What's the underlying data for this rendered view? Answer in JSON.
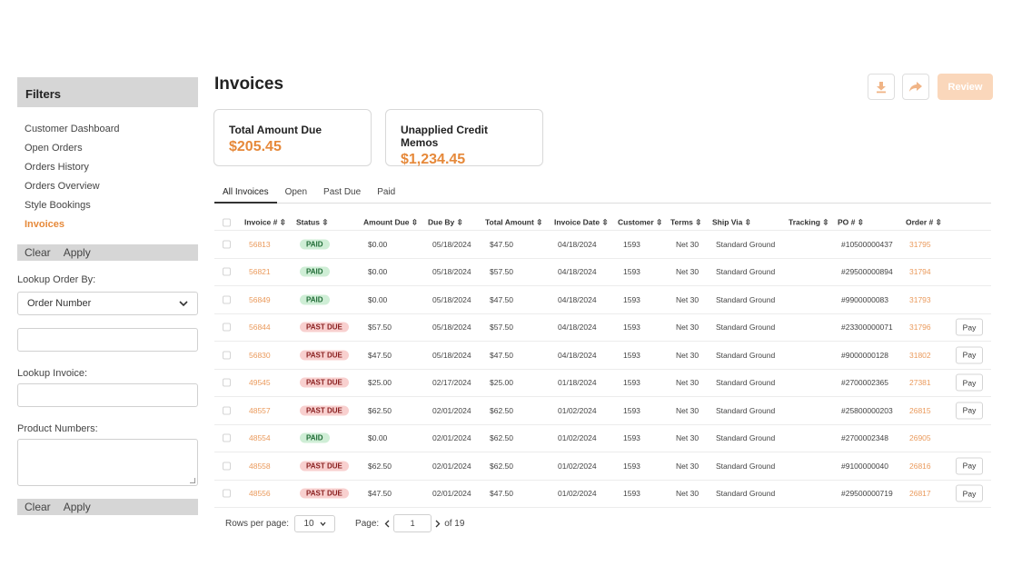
{
  "sidebar": {
    "title": "Filters",
    "nav": [
      "Customer Dashboard",
      "Open Orders",
      "Orders History",
      "Orders Overview",
      "Style Bookings",
      "Invoices"
    ],
    "clear": "Clear",
    "apply": "Apply",
    "lookup_order_label": "Lookup Order By:",
    "lookup_order_value": "Order Number",
    "lookup_invoice_label": "Lookup Invoice:",
    "product_numbers_label": "Product Numbers:"
  },
  "main": {
    "title": "Invoices",
    "review": "Review",
    "cards": [
      {
        "label": "Total Amount Due",
        "value": "$205.45"
      },
      {
        "label": "Unapplied Credit Memos",
        "value": "$1,234.45"
      }
    ],
    "tabs": [
      "All Invoices",
      "Open",
      "Past Due",
      "Paid"
    ],
    "columns": [
      "Invoice #",
      "Status",
      "Amount Due",
      "Due By",
      "Total Amount",
      "Invoice Date",
      "Customer",
      "Terms",
      "Ship Via",
      "Tracking",
      "PO #",
      "Order #"
    ],
    "sort_glyph": "⇳",
    "pay_label": "Pay",
    "rows": [
      {
        "invoice": "56813",
        "status": "PAID",
        "amount_due": "$0.00",
        "due_by": "05/18/2024",
        "total": "$47.50",
        "invoice_date": "04/18/2024",
        "customer": "1593",
        "terms": "Net 30",
        "ship_via": "Standard Ground",
        "po": "#10500000437",
        "order": "31795",
        "pay": false
      },
      {
        "invoice": "56821",
        "status": "PAID",
        "amount_due": "$0.00",
        "due_by": "05/18/2024",
        "total": "$57.50",
        "invoice_date": "04/18/2024",
        "customer": "1593",
        "terms": "Net 30",
        "ship_via": "Standard Ground",
        "po": "#29500000894",
        "order": "31794",
        "pay": false
      },
      {
        "invoice": "56849",
        "status": "PAID",
        "amount_due": "$0.00",
        "due_by": "05/18/2024",
        "total": "$47.50",
        "invoice_date": "04/18/2024",
        "customer": "1593",
        "terms": "Net 30",
        "ship_via": "Standard Ground",
        "po": "#9900000083",
        "order": "31793",
        "pay": false
      },
      {
        "invoice": "56844",
        "status": "PAST DUE",
        "amount_due": "$57.50",
        "due_by": "05/18/2024",
        "total": "$57.50",
        "invoice_date": "04/18/2024",
        "customer": "1593",
        "terms": "Net 30",
        "ship_via": "Standard Ground",
        "po": "#23300000071",
        "order": "31796",
        "pay": true
      },
      {
        "invoice": "56830",
        "status": "PAST DUE",
        "amount_due": "$47.50",
        "due_by": "05/18/2024",
        "total": "$47.50",
        "invoice_date": "04/18/2024",
        "customer": "1593",
        "terms": "Net 30",
        "ship_via": "Standard Ground",
        "po": "#9000000128",
        "order": "31802",
        "pay": true
      },
      {
        "invoice": "49545",
        "status": "PAST DUE",
        "amount_due": "$25.00",
        "due_by": "02/17/2024",
        "total": "$25.00",
        "invoice_date": "01/18/2024",
        "customer": "1593",
        "terms": "Net 30",
        "ship_via": "Standard Ground",
        "po": "#2700002365",
        "order": "27381",
        "pay": true
      },
      {
        "invoice": "48557",
        "status": "PAST DUE",
        "amount_due": "$62.50",
        "due_by": "02/01/2024",
        "total": "$62.50",
        "invoice_date": "01/02/2024",
        "customer": "1593",
        "terms": "Net 30",
        "ship_via": "Standard Ground",
        "po": "#25800000203",
        "order": "26815",
        "pay": true
      },
      {
        "invoice": "48554",
        "status": "PAID",
        "amount_due": "$0.00",
        "due_by": "02/01/2024",
        "total": "$62.50",
        "invoice_date": "01/02/2024",
        "customer": "1593",
        "terms": "Net 30",
        "ship_via": "Standard Ground",
        "po": "#2700002348",
        "order": "26905",
        "pay": false
      },
      {
        "invoice": "48558",
        "status": "PAST DUE",
        "amount_due": "$62.50",
        "due_by": "02/01/2024",
        "total": "$62.50",
        "invoice_date": "01/02/2024",
        "customer": "1593",
        "terms": "Net 30",
        "ship_via": "Standard Ground",
        "po": "#9100000040",
        "order": "26816",
        "pay": true
      },
      {
        "invoice": "48556",
        "status": "PAST DUE",
        "amount_due": "$47.50",
        "due_by": "02/01/2024",
        "total": "$47.50",
        "invoice_date": "01/02/2024",
        "customer": "1593",
        "terms": "Net 30",
        "ship_via": "Standard Ground",
        "po": "#29500000719",
        "order": "26817",
        "pay": true
      }
    ],
    "pager": {
      "rows_per_page_label": "Rows per page:",
      "rows_per_page": "10",
      "page_label": "Page:",
      "page": "1",
      "of": "of 19"
    }
  },
  "colors": {
    "accent": "#e6893a",
    "link": "#ea9a5c",
    "paid_bg": "#cfeed6",
    "due_bg": "#f8d0cf"
  }
}
